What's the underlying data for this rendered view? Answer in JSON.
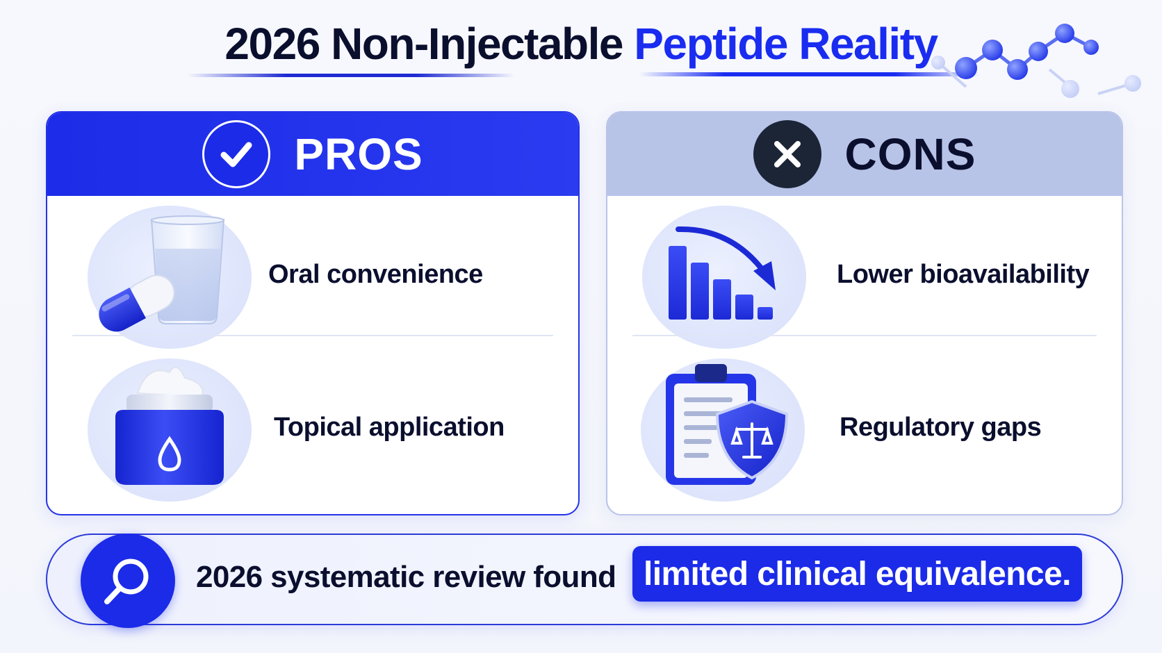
{
  "title": {
    "part1": "2026 Non-Injectable ",
    "part2": "Peptide Reality"
  },
  "pros": {
    "header": "PROS",
    "header_icon": "checkmark-icon",
    "items": [
      {
        "label": "Oral convenience",
        "icon": "pill-and-water-glass-icon"
      },
      {
        "label": "Topical application",
        "icon": "cream-jar-icon"
      }
    ]
  },
  "cons": {
    "header": "CONS",
    "header_icon": "x-mark-icon",
    "items": [
      {
        "label": "Lower bioavailability",
        "icon": "declining-bar-chart-icon"
      },
      {
        "label": "Regulatory gaps",
        "icon": "clipboard-shield-scales-icon"
      }
    ]
  },
  "footer": {
    "icon": "magnifier-icon",
    "text": "2026 systematic review found",
    "highlight": "limited clinical equivalence."
  },
  "colors": {
    "accent": "#1a2cf0",
    "dark": "#0b0f2e",
    "cons_header": "#b7c3e7"
  }
}
